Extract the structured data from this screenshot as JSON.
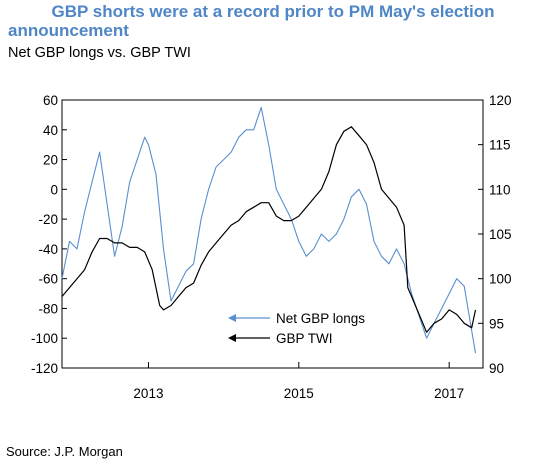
{
  "title_line1": "GBP shorts were at a record prior to PM May's election",
  "title_line2": "announcement",
  "subtitle": "Net GBP longs vs. GBP TWI",
  "source": "Source: J.P. Morgan",
  "colors": {
    "net_longs": "#5b8fcf",
    "twi": "#000000",
    "title": "#4f86c6"
  },
  "chart_data": {
    "type": "line",
    "title": "GBP shorts were at a record prior to PM May's election announcement",
    "subtitle": "Net GBP longs vs. GBP TWI",
    "xlim": [
      2011.85,
      2017.45
    ],
    "x_ticks": [
      2013,
      2015,
      2017
    ],
    "x_tick_labels": [
      "2013",
      "2015",
      "2017"
    ],
    "y_left": {
      "lim": [
        -120,
        60
      ],
      "ticks": [
        60,
        40,
        20,
        0,
        -20,
        -40,
        -60,
        -80,
        -100,
        -120
      ]
    },
    "y_right": {
      "lim": [
        90,
        120
      ],
      "ticks": [
        120,
        115,
        110,
        105,
        100,
        95,
        90
      ]
    },
    "legend": {
      "placement": "bottom-center"
    },
    "grid": false,
    "series": [
      {
        "name": "Net GBP longs",
        "axis": "left",
        "color": "#5b8fcf",
        "x": [
          2011.85,
          2011.95,
          2012.05,
          2012.15,
          2012.25,
          2012.35,
          2012.45,
          2012.55,
          2012.65,
          2012.75,
          2012.85,
          2012.95,
          2013.0,
          2013.1,
          2013.2,
          2013.3,
          2013.4,
          2013.5,
          2013.6,
          2013.7,
          2013.8,
          2013.9,
          2014.0,
          2014.1,
          2014.2,
          2014.3,
          2014.4,
          2014.5,
          2014.6,
          2014.7,
          2014.8,
          2014.9,
          2015.0,
          2015.1,
          2015.2,
          2015.3,
          2015.4,
          2015.5,
          2015.6,
          2015.7,
          2015.8,
          2015.9,
          2016.0,
          2016.1,
          2016.2,
          2016.3,
          2016.4,
          2016.5,
          2016.6,
          2016.7,
          2016.8,
          2016.9,
          2017.0,
          2017.1,
          2017.2,
          2017.3,
          2017.35
        ],
        "values": [
          -60,
          -35,
          -40,
          -15,
          5,
          25,
          -10,
          -45,
          -25,
          5,
          20,
          35,
          30,
          10,
          -40,
          -75,
          -65,
          -55,
          -50,
          -20,
          0,
          15,
          20,
          25,
          35,
          40,
          40,
          55,
          30,
          0,
          -10,
          -20,
          -35,
          -45,
          -40,
          -30,
          -35,
          -30,
          -20,
          -5,
          0,
          -10,
          -35,
          -45,
          -50,
          -40,
          -50,
          -70,
          -85,
          -100,
          -90,
          -80,
          -70,
          -60,
          -65,
          -95,
          -110
        ]
      },
      {
        "name": "GBP TWI",
        "axis": "right",
        "color": "#000000",
        "x": [
          2011.85,
          2011.95,
          2012.05,
          2012.15,
          2012.25,
          2012.35,
          2012.45,
          2012.55,
          2012.65,
          2012.75,
          2012.85,
          2012.95,
          2013.05,
          2013.15,
          2013.2,
          2013.3,
          2013.4,
          2013.5,
          2013.6,
          2013.7,
          2013.8,
          2013.9,
          2014.0,
          2014.1,
          2014.2,
          2014.3,
          2014.4,
          2014.5,
          2014.6,
          2014.7,
          2014.8,
          2014.9,
          2015.0,
          2015.1,
          2015.2,
          2015.3,
          2015.4,
          2015.5,
          2015.6,
          2015.7,
          2015.8,
          2015.9,
          2016.0,
          2016.1,
          2016.2,
          2016.3,
          2016.4,
          2016.45,
          2016.5,
          2016.6,
          2016.7,
          2016.8,
          2016.9,
          2017.0,
          2017.1,
          2017.2,
          2017.3,
          2017.35
        ],
        "values": [
          98,
          99,
          100,
          101,
          103,
          104.5,
          104.5,
          104,
          104,
          103.5,
          103.5,
          103,
          101,
          97,
          96.5,
          97,
          98,
          99,
          99.5,
          101.5,
          103,
          104,
          105,
          106,
          106.5,
          107.5,
          108,
          108.5,
          108.5,
          107,
          106.5,
          106.5,
          107,
          108,
          109,
          110,
          112,
          115,
          116.5,
          117,
          116,
          115,
          113,
          110,
          109,
          108,
          106,
          99,
          98,
          96,
          94,
          95,
          95.5,
          96.5,
          96,
          95,
          94.5,
          96.5
        ]
      }
    ]
  }
}
